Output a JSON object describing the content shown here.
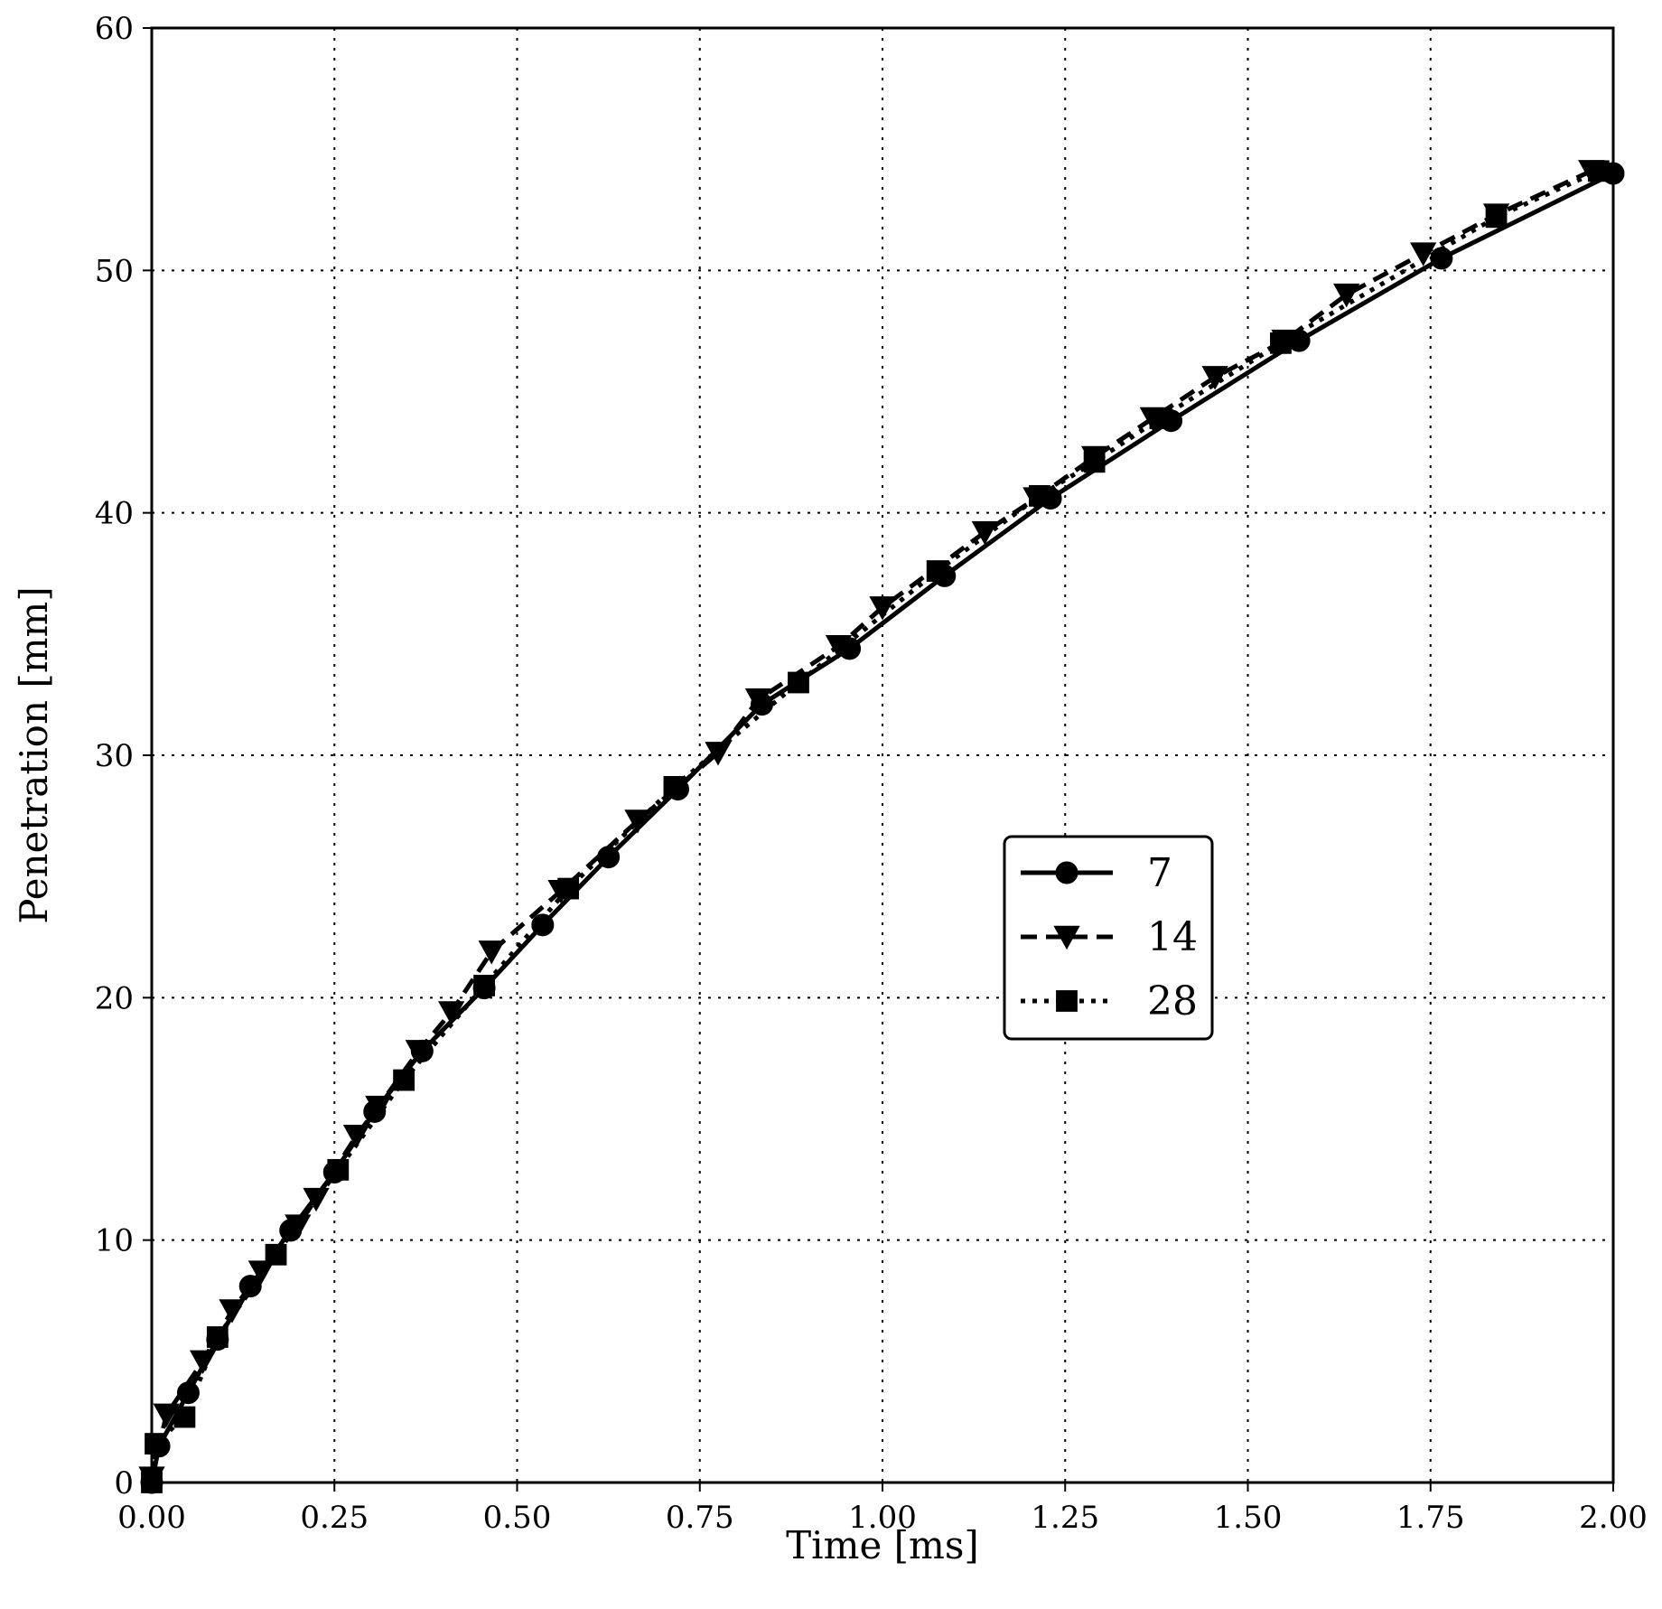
{
  "chart_data": {
    "type": "line",
    "title": "",
    "xlabel": "Time [ms]",
    "ylabel": "Penetration [mm]",
    "xlim": [
      0,
      2.0
    ],
    "ylim": [
      0,
      60
    ],
    "x_ticks": [
      0,
      0.25,
      0.5,
      0.75,
      1.0,
      1.25,
      1.5,
      1.75,
      2.0
    ],
    "x_tick_labels": [
      "0.00",
      "0.25",
      "0.50",
      "0.75",
      "1.00",
      "1.25",
      "1.50",
      "1.75",
      "2.00"
    ],
    "y_ticks": [
      0,
      10,
      20,
      30,
      40,
      50,
      60
    ],
    "y_tick_labels": [
      "0",
      "10",
      "20",
      "30",
      "40",
      "50",
      "60"
    ],
    "grid": true,
    "grid_style": "dotted",
    "legend_position": "center-right",
    "colors": {
      "lines": "#000000",
      "grid": "#000000",
      "background": "#ffffff"
    },
    "series": [
      {
        "name": "7",
        "line_style": "solid",
        "marker": "circle",
        "x": [
          0.0,
          0.01,
          0.05,
          0.09,
          0.135,
          0.19,
          0.25,
          0.305,
          0.37,
          0.455,
          0.535,
          0.625,
          0.72,
          0.835,
          0.955,
          1.085,
          1.23,
          1.395,
          1.57,
          1.765,
          2.0
        ],
        "y": [
          0.0,
          1.5,
          3.7,
          5.9,
          8.1,
          10.4,
          12.8,
          15.3,
          17.8,
          20.4,
          23.0,
          25.8,
          28.6,
          32.1,
          34.4,
          37.4,
          40.6,
          43.8,
          47.1,
          50.5,
          54.0
        ]
      },
      {
        "name": "14",
        "line_style": "dashed",
        "marker": "triangle-down",
        "x": [
          0.0,
          0.02,
          0.07,
          0.11,
          0.15,
          0.2,
          0.225,
          0.28,
          0.31,
          0.365,
          0.41,
          0.465,
          0.56,
          0.665,
          0.775,
          0.83,
          0.94,
          1.0,
          1.14,
          1.21,
          1.29,
          1.37,
          1.455,
          1.55,
          1.635,
          1.74,
          1.84,
          1.97
        ],
        "y": [
          0.2,
          2.8,
          5.0,
          7.1,
          8.7,
          10.6,
          11.7,
          14.3,
          15.5,
          17.8,
          19.4,
          21.9,
          24.4,
          27.3,
          30.1,
          32.3,
          34.5,
          36.1,
          39.2,
          40.6,
          42.3,
          43.9,
          45.6,
          47.1,
          49.0,
          50.7,
          52.3,
          54.1
        ]
      },
      {
        "name": "28",
        "line_style": "dotted",
        "marker": "square",
        "x": [
          0.0,
          0.005,
          0.045,
          0.09,
          0.17,
          0.255,
          0.345,
          0.455,
          0.57,
          0.715,
          0.885,
          1.075,
          1.215,
          1.29,
          1.38,
          1.545,
          1.84,
          1.98
        ],
        "y": [
          0.0,
          1.6,
          2.7,
          6.0,
          9.4,
          12.9,
          16.6,
          20.5,
          24.5,
          28.7,
          33.0,
          37.6,
          40.7,
          42.1,
          43.9,
          47.0,
          52.2,
          54.1
        ]
      }
    ]
  }
}
